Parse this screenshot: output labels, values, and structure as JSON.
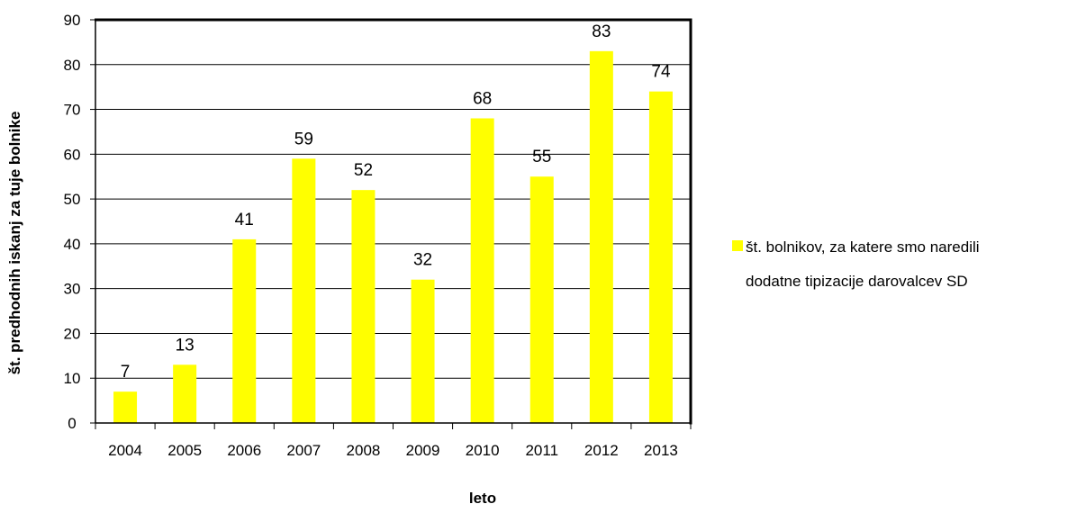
{
  "chart_data": {
    "type": "bar",
    "categories": [
      "2004",
      "2005",
      "2006",
      "2007",
      "2008",
      "2009",
      "2010",
      "2011",
      "2012",
      "2013"
    ],
    "series": [
      {
        "name": "št. bolnikov, za katere smo naredili dodatne tipizacije darovalcev SD",
        "values": [
          7,
          13,
          41,
          59,
          52,
          32,
          68,
          55,
          83,
          74
        ],
        "color": "#ffff00"
      }
    ],
    "xlabel": "leto",
    "ylabel": "št. predhodnih iskanj za tuje bolnike",
    "ylim": [
      0,
      90
    ],
    "ytick_step": 10,
    "yticks": [
      "0",
      "10",
      "20",
      "30",
      "40",
      "50",
      "60",
      "70",
      "80",
      "90"
    ],
    "grid": true,
    "legend_position": "right",
    "legend_lines": [
      "št. bolnikov, za katere smo naredili",
      "dodatne tipizacije darovalcev SD"
    ],
    "data_labels": true
  }
}
